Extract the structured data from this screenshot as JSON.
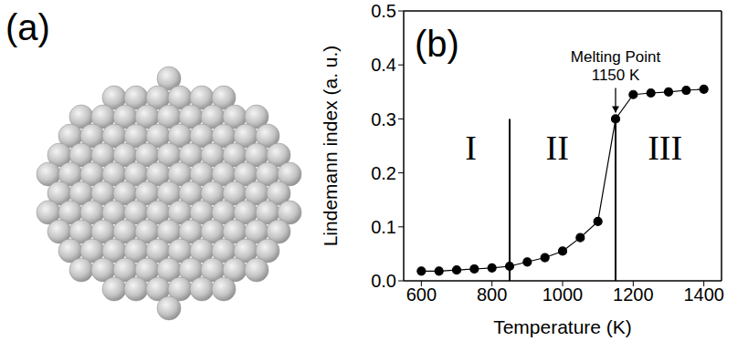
{
  "panel_a": {
    "label": "(a)"
  },
  "chart_data": {
    "type": "line",
    "label": "(b)",
    "xlabel": "Temperature (K)",
    "ylabel": "Lindemann index (a. u.)",
    "x": [
      600,
      650,
      700,
      750,
      800,
      850,
      900,
      950,
      1000,
      1050,
      1100,
      1150,
      1200,
      1250,
      1300,
      1350,
      1400
    ],
    "values": [
      0.018,
      0.018,
      0.02,
      0.022,
      0.024,
      0.027,
      0.035,
      0.043,
      0.055,
      0.08,
      0.11,
      0.3,
      0.345,
      0.348,
      0.35,
      0.353,
      0.355
    ],
    "color": "#000000",
    "marker": "circle",
    "line_style": "solid",
    "xlim": [
      550,
      1450
    ],
    "xticks": [
      600,
      800,
      1000,
      1200,
      1400
    ],
    "ylim": [
      0,
      0.5
    ],
    "yticks": [
      {
        "value": 0,
        "label": "0.0"
      },
      {
        "value": 0.1,
        "label": "0.1"
      },
      {
        "value": 0.2,
        "label": "0.2"
      },
      {
        "value": 0.3,
        "label": "0.3"
      },
      {
        "value": 0.4,
        "label": "0.4"
      },
      {
        "value": 0.5,
        "label": "0.5"
      }
    ],
    "grid": false,
    "vlines": [
      {
        "x": 850,
        "y": [
          0,
          0.3
        ]
      },
      {
        "x": 1150,
        "y": [
          0,
          0.3
        ]
      }
    ],
    "regions": [
      {
        "text": "I",
        "x": 740,
        "y": 0.24
      },
      {
        "text": "II",
        "x": 985,
        "y": 0.24
      },
      {
        "text": "III",
        "x": 1290,
        "y": 0.24
      }
    ],
    "annotation": {
      "lines": [
        "Melting Point",
        "1150 K"
      ],
      "x": 1150,
      "y": 0.3
    }
  }
}
